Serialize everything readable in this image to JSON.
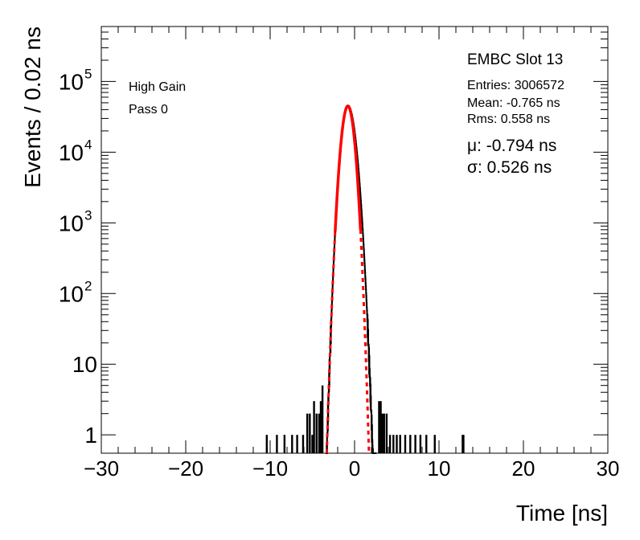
{
  "chart_data": {
    "type": "histogram",
    "xlabel": "Time [ns]",
    "ylabel": "Events / 0.02 ns",
    "xlim": [
      -30,
      30
    ],
    "ylim": [
      0.55,
      600000
    ],
    "yscale": "log",
    "grid": false,
    "x_ticks": [
      -30,
      -20,
      -10,
      0,
      10,
      20,
      30
    ],
    "x_tick_labels": [
      "−30",
      "−20",
      "−10",
      "0",
      "10",
      "20",
      "30"
    ],
    "y_ticks": [
      {
        "value": 1,
        "mantissa": "1",
        "exp": ""
      },
      {
        "value": 10,
        "mantissa": "10",
        "exp": ""
      },
      {
        "value": 100,
        "mantissa": "10",
        "exp": "2"
      },
      {
        "value": 1000,
        "mantissa": "10",
        "exp": "3"
      },
      {
        "value": 10000,
        "mantissa": "10",
        "exp": "4"
      },
      {
        "value": 100000,
        "mantissa": "10",
        "exp": "5"
      }
    ],
    "title": "EMBC Slot 13",
    "labels": [
      "High Gain",
      "Pass 0"
    ],
    "stats": {
      "entries": "Entries: 3006572",
      "mean": "Mean: -0.765 ns",
      "rms": "Rms: 0.558 ns"
    },
    "fit_labels": {
      "mu": "μ: -0.794 ns",
      "sigma": "σ: 0.526 ns"
    },
    "histogram": {
      "color": "#000000",
      "peak": 45000,
      "peak_at": -0.794,
      "core_sigma": 0.526,
      "tail_sigma": 0.62,
      "outlier_spikes": [
        [
          -10.4,
          1
        ],
        [
          -9.2,
          1
        ],
        [
          -8.3,
          1
        ],
        [
          -7.4,
          1
        ],
        [
          -6.8,
          1
        ],
        [
          -6.1,
          1
        ],
        [
          -5.6,
          2
        ],
        [
          -5.3,
          2
        ],
        [
          -5.0,
          1
        ],
        [
          -4.8,
          3
        ],
        [
          -4.5,
          2
        ],
        [
          -4.2,
          2
        ],
        [
          -4.0,
          3
        ],
        [
          -3.8,
          5
        ],
        [
          2.9,
          3
        ],
        [
          3.1,
          3
        ],
        [
          3.3,
          2
        ],
        [
          3.5,
          2
        ],
        [
          3.8,
          2
        ],
        [
          4.2,
          1
        ],
        [
          4.6,
          1
        ],
        [
          5.0,
          1
        ],
        [
          5.4,
          1
        ],
        [
          6.0,
          1
        ],
        [
          6.6,
          1
        ],
        [
          7.2,
          1
        ],
        [
          7.8,
          1
        ],
        [
          8.5,
          1
        ],
        [
          9.5,
          1
        ],
        [
          12.8,
          1
        ],
        [
          12.9,
          1
        ]
      ]
    },
    "fit": {
      "type": "gaussian",
      "color": "#ff0000",
      "amplitude": 45000,
      "mean": -0.794,
      "sigma": 0.526,
      "solid_range": [
        -2.3,
        0.7
      ],
      "draw_range": [
        -3.3,
        1.85
      ]
    }
  }
}
